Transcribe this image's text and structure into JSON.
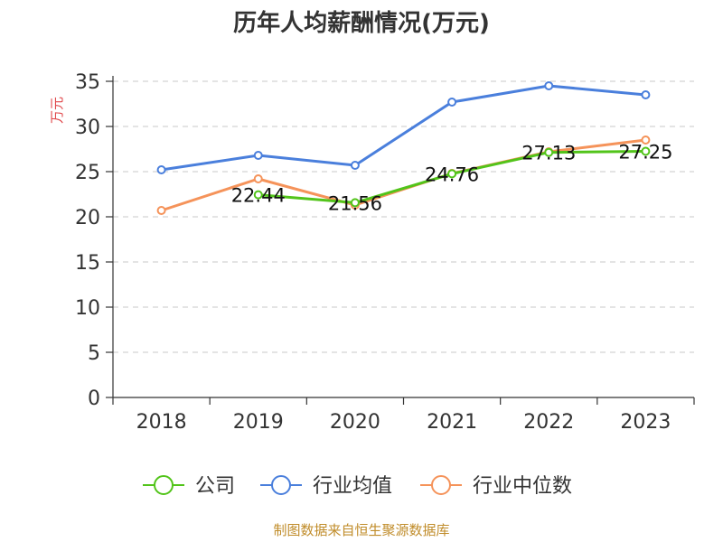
{
  "chart_data": {
    "type": "line",
    "title": "历年人均薪酬情况(万元)",
    "ylabel": "万元",
    "xlabel": "",
    "categories": [
      "2018",
      "2019",
      "2020",
      "2021",
      "2022",
      "2023"
    ],
    "ylim": [
      0,
      35
    ],
    "yticks": [
      0,
      5,
      10,
      15,
      20,
      25,
      30,
      35
    ],
    "grid": true,
    "legend_position": "bottom",
    "series": [
      {
        "name": "公司",
        "color": "#52c41a",
        "values": [
          null,
          22.44,
          21.56,
          24.76,
          27.13,
          27.25
        ],
        "labels": [
          "",
          "22.44",
          "21.56",
          "24.76",
          "27.13",
          "27.25"
        ]
      },
      {
        "name": "行业均值",
        "color": "#4a7fdc",
        "values": [
          25.2,
          26.8,
          25.7,
          32.7,
          34.5,
          33.5
        ],
        "labels": null
      },
      {
        "name": "行业中位数",
        "color": "#f5935a",
        "values": [
          20.7,
          24.2,
          21.3,
          24.8,
          27.2,
          28.5
        ],
        "labels": null
      }
    ]
  },
  "footer": {
    "source": "制图数据来自恒生聚源数据库"
  }
}
